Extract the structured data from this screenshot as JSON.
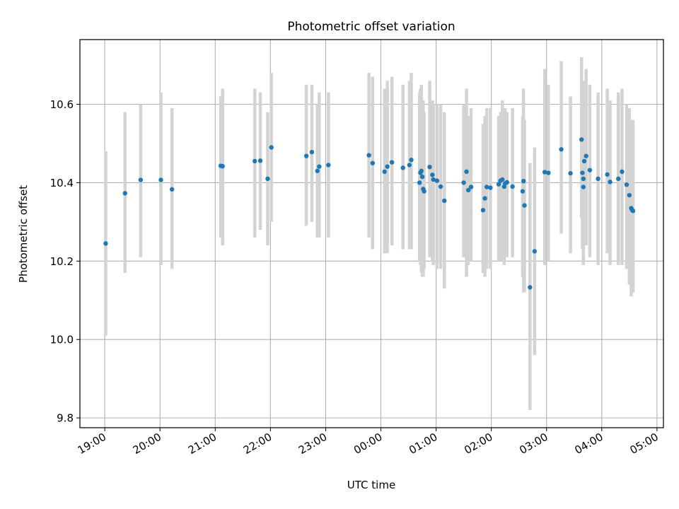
{
  "chart_data": {
    "type": "scatter",
    "title": "Photometric offset variation",
    "xlabel": "UTC time",
    "ylabel": "Photometric offset",
    "grid": true,
    "x_ticks": [
      "19:00",
      "20:00",
      "21:00",
      "22:00",
      "23:00",
      "00:00",
      "01:00",
      "02:00",
      "03:00",
      "04:00",
      "05:00"
    ],
    "y_ticks": [
      "9.8",
      "10.0",
      "10.2",
      "10.4",
      "10.6"
    ],
    "xlim": [
      "18:33",
      "05:07"
    ],
    "ylim": [
      9.775,
      10.765
    ],
    "colors": {
      "points": "#1f77b4",
      "errorbars": "#d3d3d3",
      "grid": "#b0b0b0"
    },
    "series": [
      {
        "x": [
          "19:01",
          "19:22",
          "19:39",
          "20:01",
          "20:13",
          "21:06",
          "21:08",
          "21:43",
          "21:49",
          "21:57",
          "22:01",
          "22:39",
          "22:45",
          "22:51",
          "22:53",
          "23:03",
          "23:47",
          "23:51",
          "00:04",
          "00:07",
          "00:12",
          "00:24",
          "00:31",
          "00:33",
          "00:42",
          "00:43",
          "00:44",
          "00:45",
          "00:46",
          "00:47",
          "00:53",
          "00:56",
          "00:57",
          "01:01",
          "01:05",
          "01:09",
          "01:30",
          "01:33",
          "01:35",
          "01:38",
          "01:51",
          "01:53",
          "01:55",
          "01:59",
          "02:08",
          "02:10",
          "02:12",
          "02:14",
          "02:15",
          "02:17",
          "02:23",
          "02:34",
          "02:35",
          "02:36",
          "02:42",
          "02:47",
          "02:58",
          "03:02",
          "03:16",
          "03:26",
          "03:38",
          "03:39",
          "03:40",
          "03:40",
          "03:41",
          "03:43",
          "03:47",
          "03:56",
          "04:06",
          "04:09",
          "04:18",
          "04:22",
          "04:27",
          "04:30",
          "04:32",
          "04:33",
          "04:34"
        ],
        "y": [
          10.245,
          10.373,
          10.407,
          10.407,
          10.383,
          10.443,
          10.442,
          10.455,
          10.456,
          10.41,
          10.49,
          10.468,
          10.478,
          10.43,
          10.441,
          10.445,
          10.47,
          10.45,
          10.428,
          10.441,
          10.452,
          10.438,
          10.445,
          10.458,
          10.4,
          10.425,
          10.43,
          10.415,
          10.384,
          10.378,
          10.44,
          10.42,
          10.408,
          10.405,
          10.39,
          10.354,
          10.4,
          10.428,
          10.381,
          10.389,
          10.33,
          10.36,
          10.389,
          10.387,
          10.396,
          10.405,
          10.408,
          10.39,
          10.398,
          10.401,
          10.39,
          10.378,
          10.404,
          10.342,
          10.133,
          10.225,
          10.427,
          10.425,
          10.485,
          10.424,
          10.51,
          10.425,
          10.389,
          10.41,
          10.455,
          10.468,
          10.432,
          10.41,
          10.421,
          10.402,
          10.41,
          10.428,
          10.395,
          10.368,
          10.335,
          10.33,
          10.328
        ],
        "err_low": [
          10.01,
          10.17,
          10.21,
          10.19,
          10.18,
          10.26,
          10.24,
          10.26,
          10.28,
          10.24,
          10.3,
          10.29,
          10.3,
          10.26,
          10.26,
          10.26,
          10.26,
          10.23,
          10.22,
          10.22,
          10.24,
          10.23,
          10.23,
          10.23,
          10.2,
          10.19,
          10.17,
          10.16,
          10.16,
          10.18,
          10.21,
          10.2,
          10.19,
          10.18,
          10.18,
          10.13,
          10.21,
          10.16,
          10.19,
          10.2,
          10.17,
          10.16,
          10.18,
          10.18,
          10.2,
          10.2,
          10.2,
          10.19,
          10.21,
          10.21,
          10.21,
          10.16,
          10.12,
          10.12,
          9.82,
          9.96,
          10.19,
          10.2,
          10.27,
          10.22,
          10.31,
          10.23,
          10.2,
          10.19,
          10.25,
          10.24,
          10.21,
          10.19,
          10.22,
          10.19,
          10.19,
          10.19,
          10.18,
          10.14,
          10.11,
          10.12,
          10.12
        ],
        "err_high": [
          10.48,
          10.58,
          10.6,
          10.63,
          10.59,
          10.62,
          10.64,
          10.64,
          10.63,
          10.58,
          10.68,
          10.65,
          10.65,
          10.6,
          10.63,
          10.63,
          10.68,
          10.67,
          10.64,
          10.66,
          10.67,
          10.65,
          10.66,
          10.68,
          10.63,
          10.64,
          10.65,
          10.6,
          10.61,
          10.58,
          10.66,
          10.61,
          10.6,
          10.6,
          10.6,
          10.58,
          10.6,
          10.64,
          10.57,
          10.59,
          10.55,
          10.57,
          10.59,
          10.59,
          10.57,
          10.58,
          10.61,
          10.56,
          10.59,
          10.58,
          10.59,
          10.57,
          10.64,
          10.56,
          10.45,
          10.49,
          10.69,
          10.65,
          10.71,
          10.62,
          10.72,
          10.64,
          10.59,
          10.63,
          10.66,
          10.69,
          10.65,
          10.63,
          10.64,
          10.61,
          10.63,
          10.64,
          10.6,
          10.59,
          10.56,
          10.55,
          10.56
        ]
      }
    ]
  }
}
